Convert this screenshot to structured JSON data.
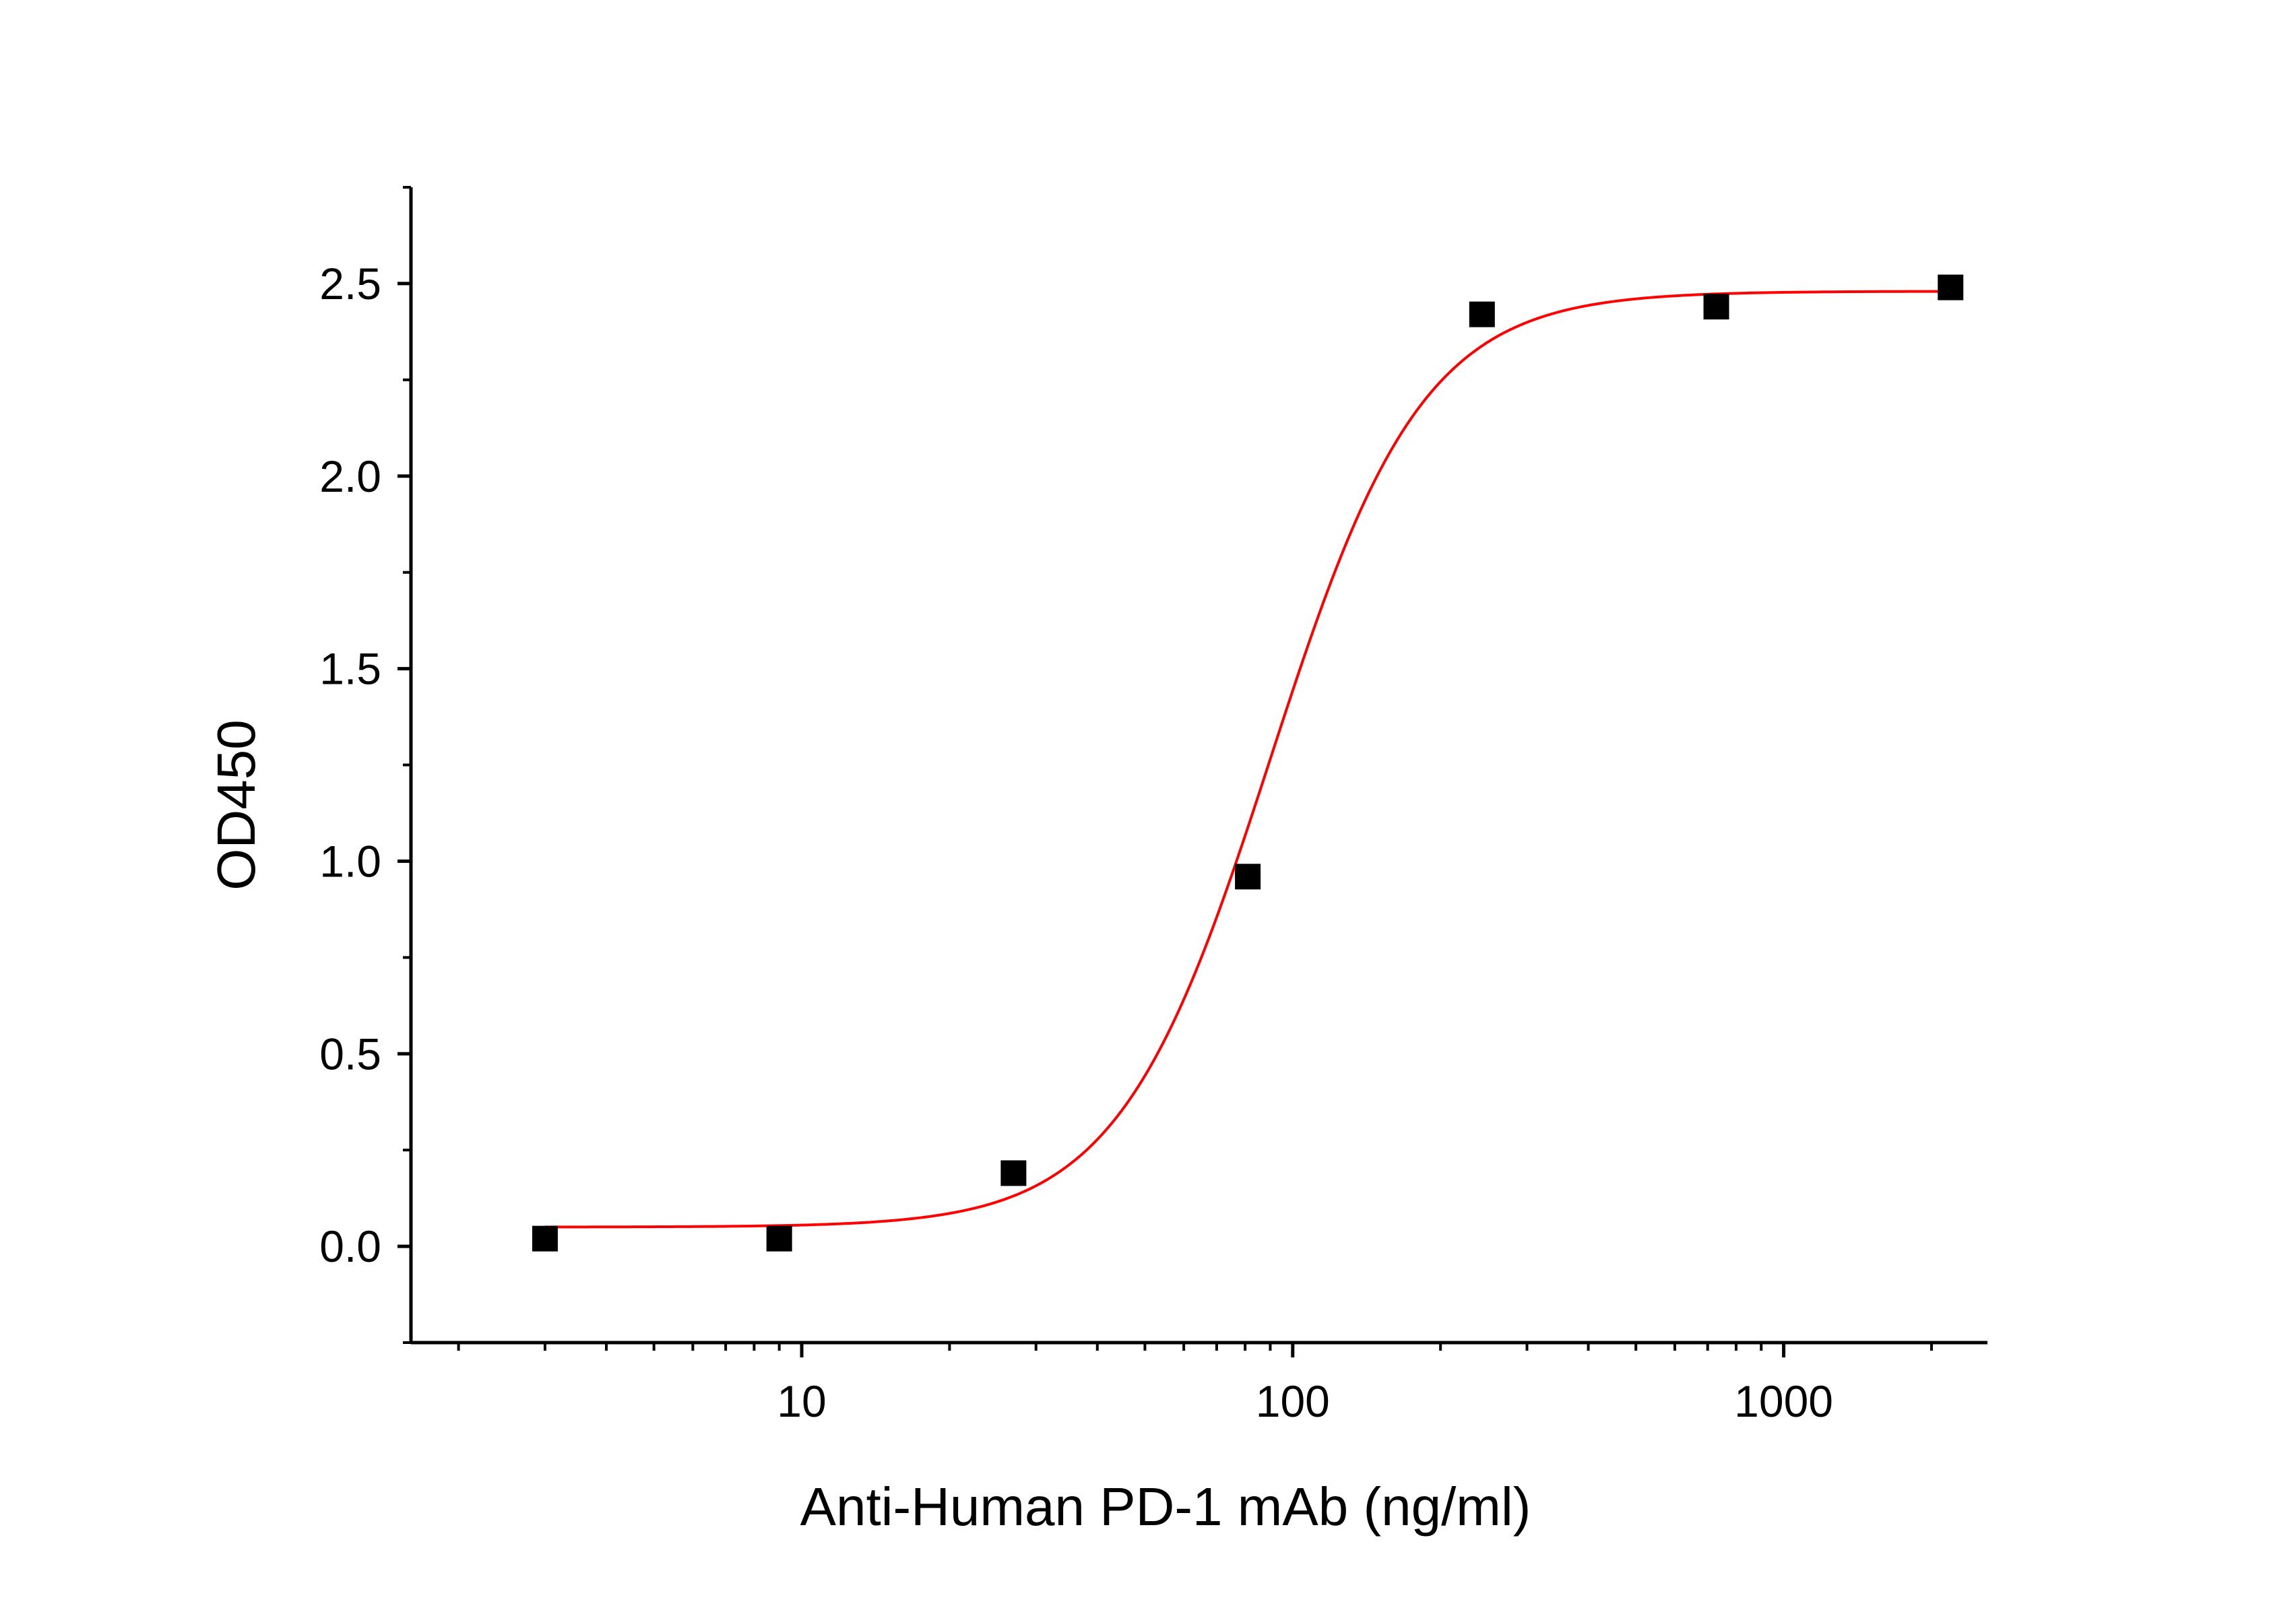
{
  "chart_data": {
    "type": "scatter",
    "title": "",
    "xlabel": "Anti-Human PD-1 mAb (ng/ml)",
    "ylabel": "OD450",
    "x_scale": "log",
    "xlim": [
      1.6,
      2600
    ],
    "ylim": [
      -0.25,
      2.75
    ],
    "x_ticks": [
      {
        "value": 10,
        "label": "10"
      },
      {
        "value": 100,
        "label": "100"
      },
      {
        "value": 1000,
        "label": "1000"
      }
    ],
    "y_ticks": [
      {
        "value": 0.0,
        "label": "0.0"
      },
      {
        "value": 0.5,
        "label": "0.5"
      },
      {
        "value": 1.0,
        "label": "1.0"
      },
      {
        "value": 1.5,
        "label": "1.5"
      },
      {
        "value": 2.0,
        "label": "2.0"
      },
      {
        "value": 2.5,
        "label": "2.5"
      }
    ],
    "grid": false,
    "legend": "none",
    "series": [
      {
        "kind": "points",
        "marker": "square",
        "color": "#000000",
        "x": [
          3.0,
          9.0,
          27.0,
          81.0,
          243.0,
          729.0,
          2187.0
        ],
        "y": [
          0.02,
          0.02,
          0.19,
          0.96,
          2.42,
          2.44,
          2.49
        ]
      },
      {
        "kind": "fit",
        "model": "4PL",
        "color": "#ff0000",
        "x_range": [
          3.0,
          2187.0
        ],
        "bottom": 0.05,
        "top": 2.48,
        "ec50": 90,
        "hill": 2.8
      }
    ]
  }
}
